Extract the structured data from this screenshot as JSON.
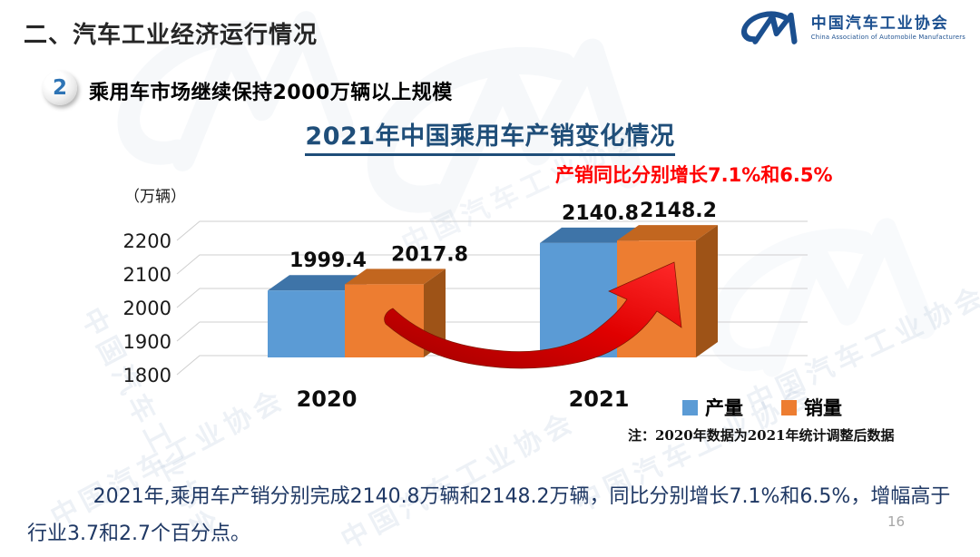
{
  "page": {
    "title_bar": "二、汽车工业经济运行情况",
    "number": "16"
  },
  "logo": {
    "org_cn": "中国汽车工业协会",
    "org_en": "China Association of Automobile Manufacturers",
    "color": "#1B4F8F"
  },
  "section": {
    "badge": "2",
    "heading": "乘用车市场继续保持2000万辆以上规模"
  },
  "chart": {
    "title": "2021年中国乘用车产销变化情况",
    "annotation": "产销同比分别增长7.1%和6.5%",
    "note": "注：2020年数据为2021年统计调整后数据",
    "legend": [
      {
        "label": "产量",
        "color": "#5B9BD5"
      },
      {
        "label": "销量",
        "color": "#ED7D31"
      }
    ]
  },
  "chart_data": {
    "type": "bar",
    "style": "3d-clustered",
    "title": "2021年中国乘用车产销变化情况",
    "categories": [
      "2020",
      "2021"
    ],
    "series": [
      {
        "name": "产量",
        "color": "#5B9BD5",
        "values": [
          1999.4,
          2140.8
        ]
      },
      {
        "name": "销量",
        "color": "#ED7D31",
        "values": [
          2017.8,
          2148.2
        ]
      }
    ],
    "ylabel": "（万辆）",
    "ylim": [
      1800,
      2200
    ],
    "yticks": [
      1800,
      1900,
      2000,
      2100,
      2200
    ],
    "grid": true,
    "legend_position": "bottom-right",
    "annotation": "产销同比分别增长7.1%和6.5%"
  },
  "summary": {
    "text": "2021年,乘用车产销分别完成2140.8万辆和2148.2万辆，同比分别增长7.1%和6.5%，增幅高于行业3.7和2.7个百分点。"
  },
  "watermark": {
    "text": "中国汽车工业协会",
    "text_en": "China Association of Automobile Manufacturers"
  },
  "colors": {
    "title_blue": "#1F4E79",
    "annotation_red": "#FF0000",
    "summary_navy": "#1F3864",
    "header_dark": "#262626",
    "logo_blue": "#1B4F8F"
  }
}
